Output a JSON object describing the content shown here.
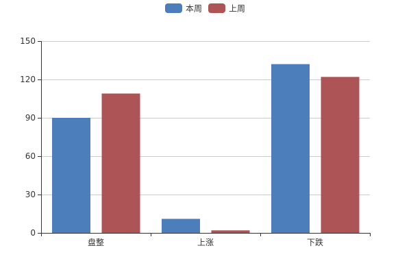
{
  "chart_data": {
    "type": "bar",
    "categories": [
      "盘整",
      "上涨",
      "下跌"
    ],
    "series": [
      {
        "name": "本周",
        "values": [
          90,
          11,
          132
        ],
        "color": "#4c7ebb"
      },
      {
        "name": "上周",
        "values": [
          109,
          2,
          122
        ],
        "color": "#ad5457"
      }
    ],
    "ylim": [
      0,
      150
    ],
    "yticks": [
      0,
      30,
      60,
      90,
      120,
      150
    ],
    "grid": true,
    "legend": "top-center"
  }
}
